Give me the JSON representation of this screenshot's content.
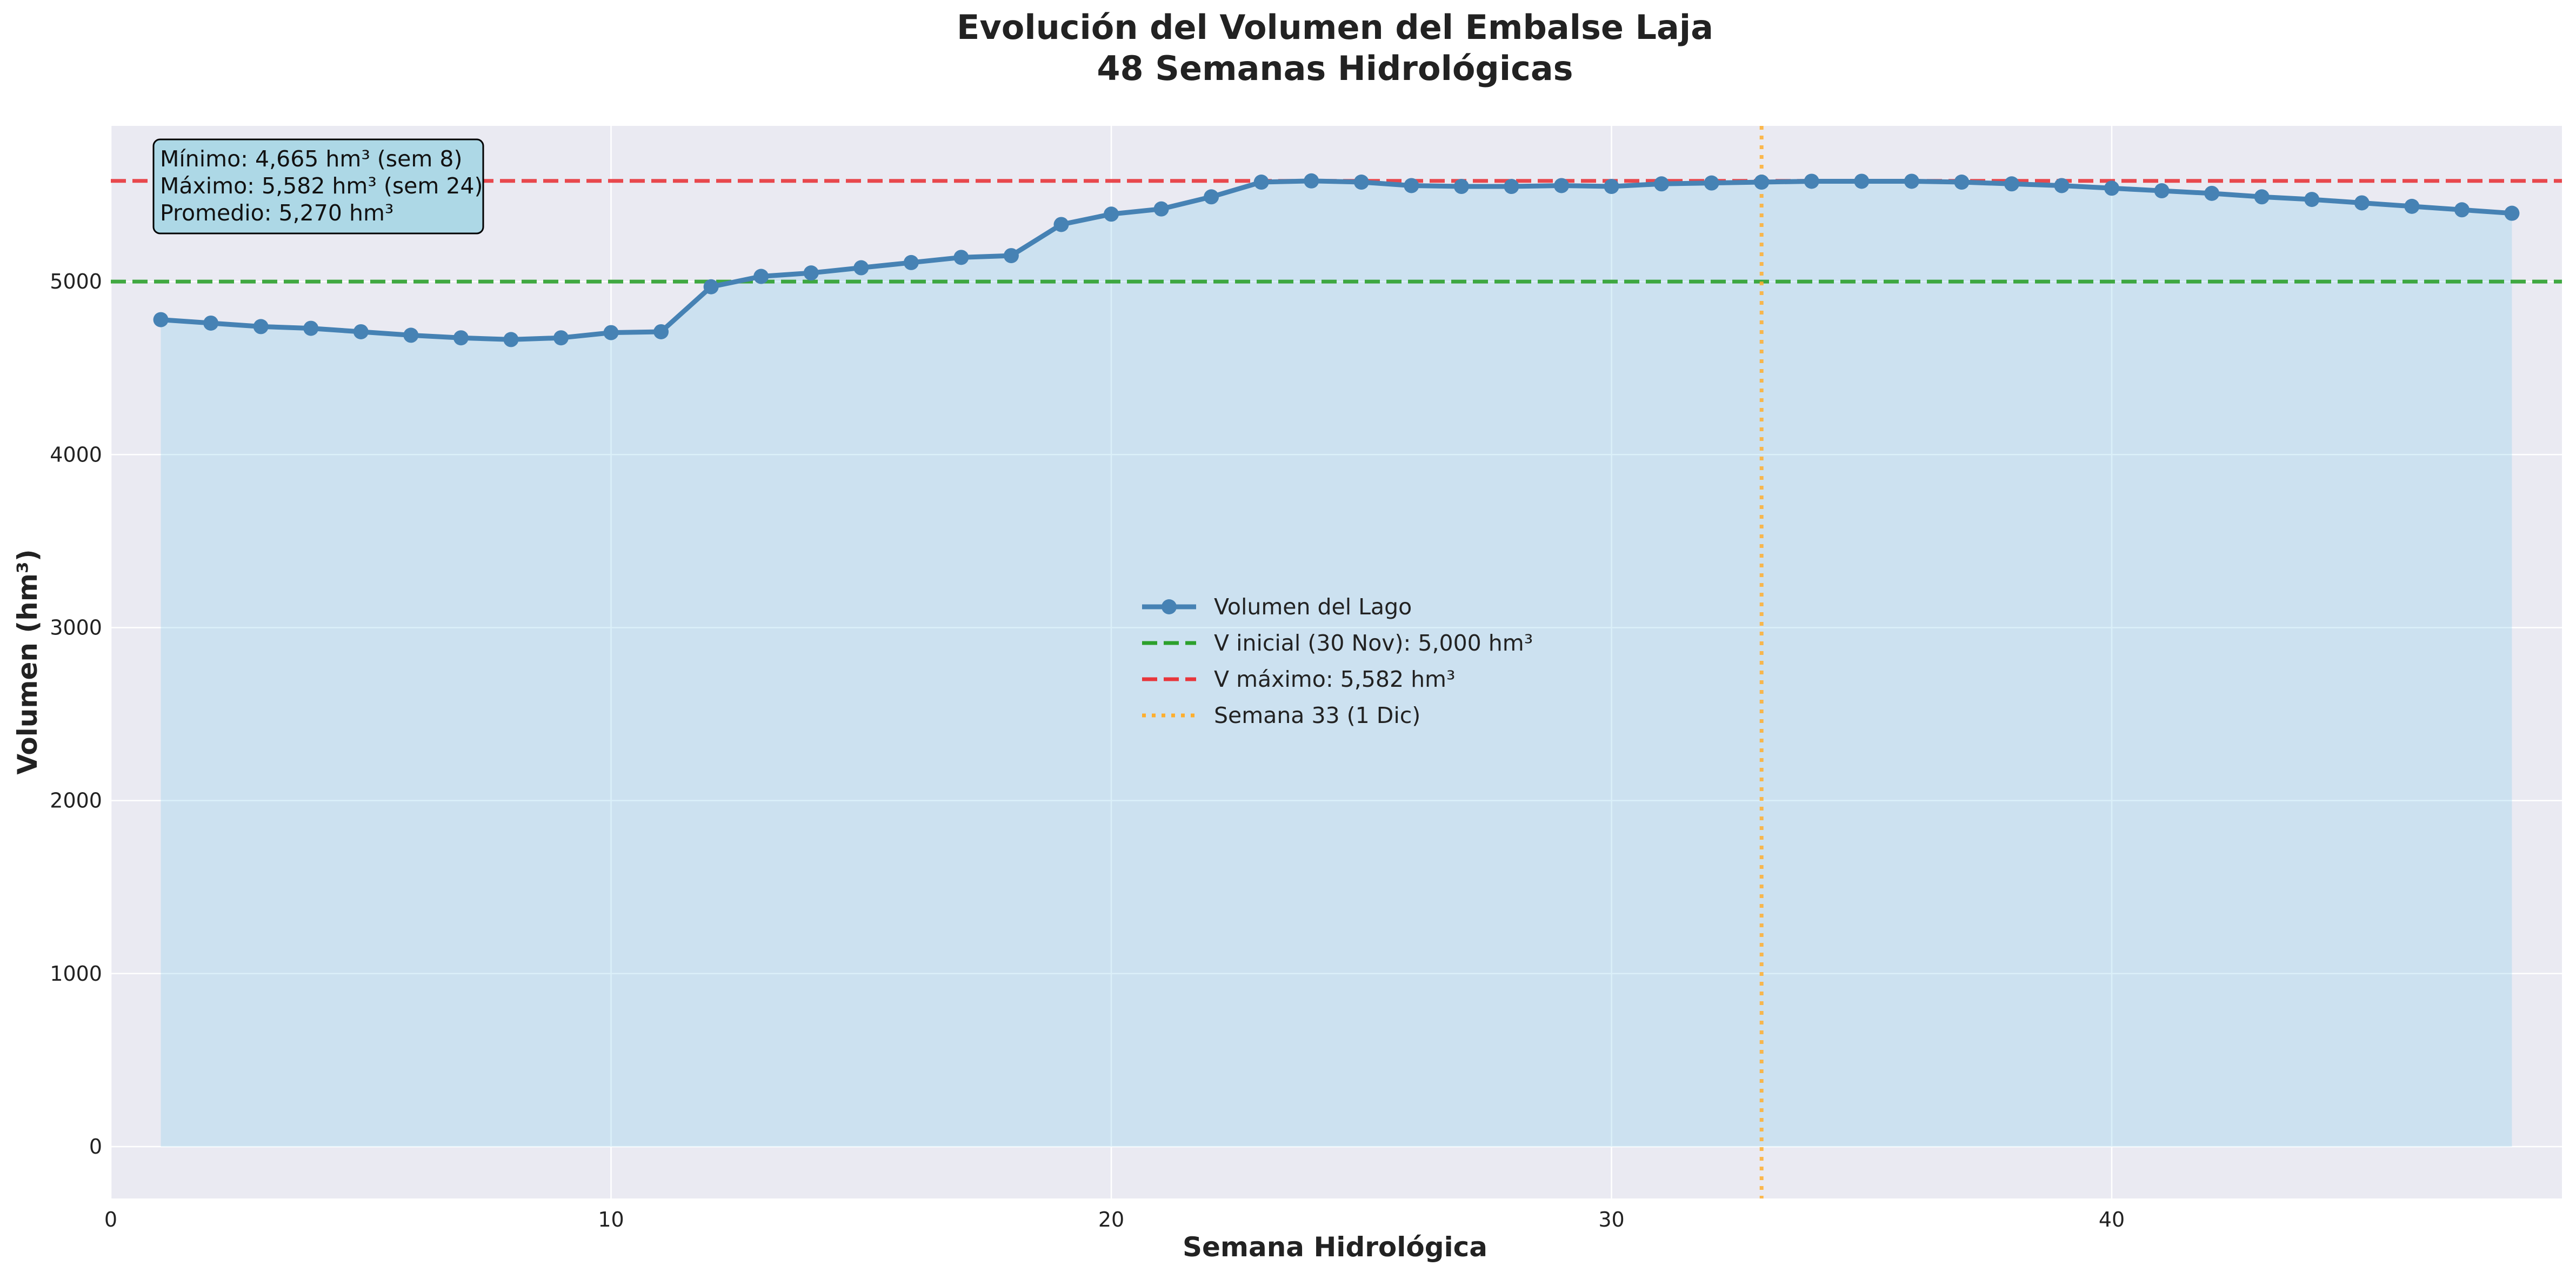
{
  "chart_data": {
    "type": "line",
    "title": "Evolución del Volumen del Embalse Laja",
    "subtitle": "48 Semanas Hidrológicas",
    "xlabel": "Semana Hidrológica",
    "ylabel": "Volumen (hm³)",
    "xlim": [
      0,
      49
    ],
    "ylim": [
      -300,
      5900
    ],
    "xticks": [
      0,
      10,
      20,
      30,
      40
    ],
    "yticks": [
      0,
      1000,
      2000,
      3000,
      4000,
      5000
    ],
    "grid": true,
    "legend_position": "center",
    "series": [
      {
        "name": "Volumen del Lago",
        "color": "#4682b4",
        "fill_color": "#87ceeb",
        "x": [
          1,
          2,
          3,
          4,
          5,
          6,
          7,
          8,
          9,
          10,
          11,
          12,
          13,
          14,
          15,
          16,
          17,
          18,
          19,
          20,
          21,
          22,
          23,
          24,
          25,
          26,
          27,
          28,
          29,
          30,
          31,
          32,
          33,
          34,
          35,
          36,
          37,
          38,
          39,
          40,
          41,
          42,
          43,
          44,
          45,
          46,
          47,
          48
        ],
        "values": [
          4780,
          4760,
          4740,
          4730,
          4710,
          4690,
          4675,
          4665,
          4675,
          4705,
          4710,
          4970,
          5030,
          5050,
          5080,
          5110,
          5140,
          5150,
          5330,
          5390,
          5420,
          5490,
          5575,
          5582,
          5575,
          5555,
          5550,
          5550,
          5555,
          5550,
          5565,
          5570,
          5575,
          5580,
          5580,
          5580,
          5575,
          5565,
          5555,
          5540,
          5525,
          5510,
          5490,
          5475,
          5455,
          5435,
          5415,
          5395
        ]
      }
    ],
    "reference_lines": [
      {
        "orientation": "horizontal",
        "value": 5000,
        "style": "dashed",
        "color": "#2ca02c",
        "label": "V inicial (30 Nov): 5,000 hm³"
      },
      {
        "orientation": "horizontal",
        "value": 5582,
        "style": "dashed",
        "color": "#e8363b",
        "label": "V máximo: 5,582 hm³"
      },
      {
        "orientation": "vertical",
        "value": 33,
        "style": "dotted",
        "color": "#ffae2e",
        "label": "Semana 33 (1 Dic)"
      }
    ],
    "stats_box": [
      "Mínimo: 4,665 hm³ (sem 8)",
      "Máximo: 5,582 hm³ (sem 24)",
      "Promedio: 5,270 hm³"
    ],
    "colors": {
      "plot_background": "#eaeaf2",
      "grid": "#ffffff",
      "stats_box_fill": "#add8e6"
    }
  }
}
